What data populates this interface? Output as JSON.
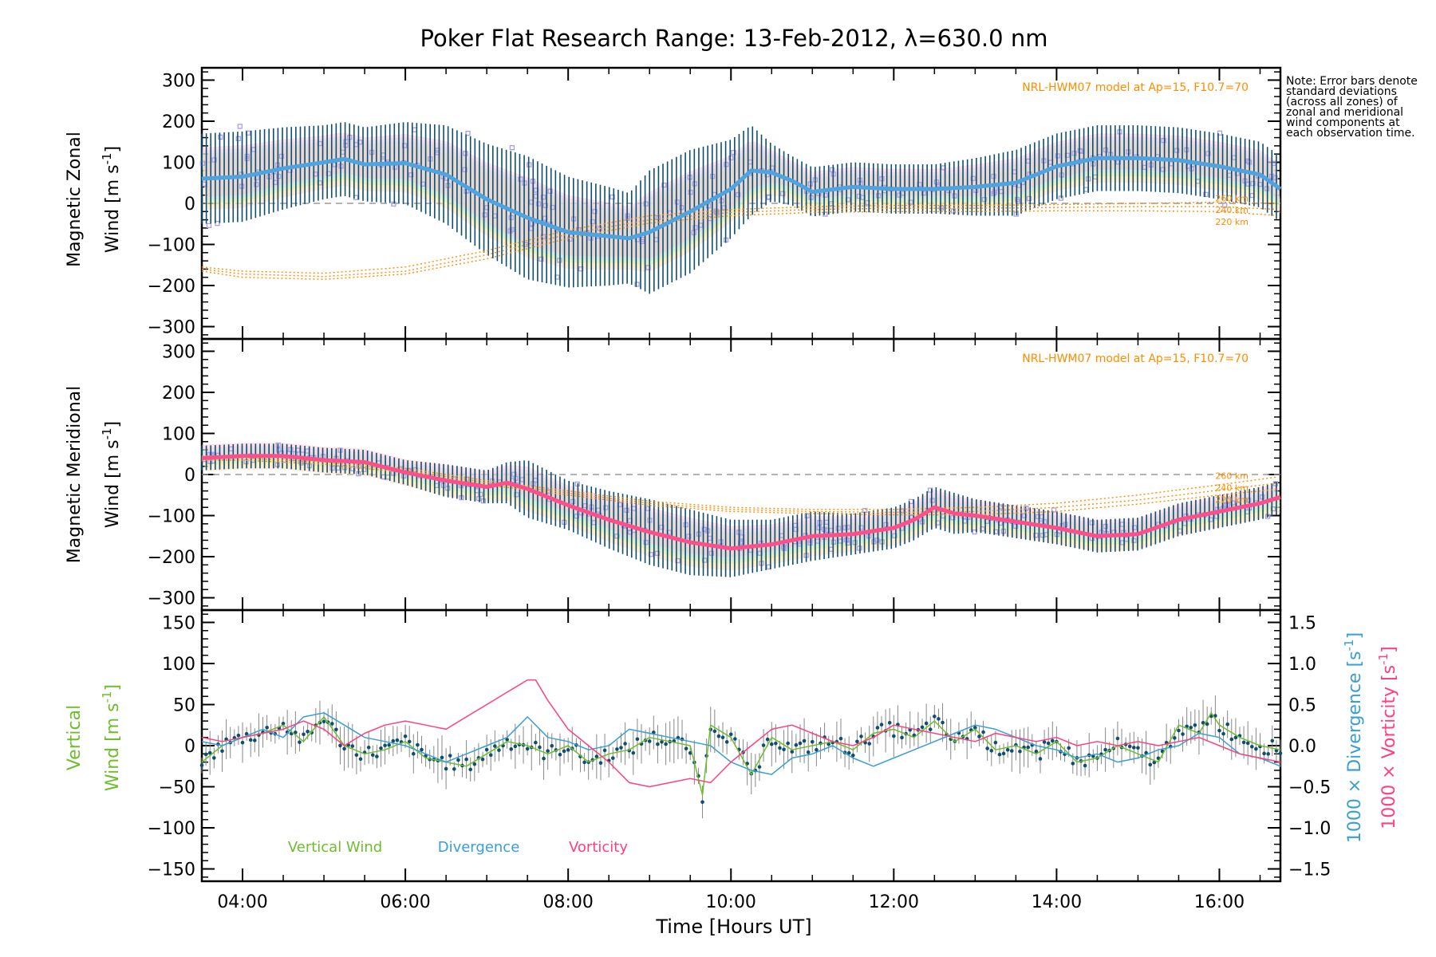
{
  "title": "Poker Flat Research Range: 13-Feb-2012, λ=630.0 nm",
  "note": "Note: Error bars denote standard deviations (across all zones) of zonal and meridional wind components at each observation time.",
  "colors": {
    "zonal_mean": "#4fa3df",
    "meridional_mean": "#ff4f8b",
    "model": "#ff8c00",
    "vertical": "#6ebd2e",
    "divergence": "#3a9ed6",
    "vorticity": "#ff3f7f",
    "errorbar": "#0e4f6f",
    "scatter": "#a8a0e6",
    "zero_line": "#9a9a9a"
  },
  "chart_data": [
    {
      "type": "line",
      "panel": "zonal",
      "ylabel_line1": "Magnetic Zonal",
      "ylabel_line2": "Wind [m s",
      "ylabel_sup": "-1",
      "ylabel_close": "]",
      "ylim": [
        -330,
        330
      ],
      "yticks": [
        300,
        200,
        100,
        0,
        -100,
        -200,
        -300
      ],
      "model_label": "NRL-HWM07 model at Ap=15, F10.7=70",
      "model_altitudes": [
        "260 km",
        "240 km",
        "220 km"
      ],
      "mean_wind": {
        "x": [
          3.5,
          4.0,
          4.5,
          5.0,
          5.25,
          5.5,
          6.0,
          6.5,
          7.0,
          7.5,
          8.0,
          8.5,
          8.75,
          9.0,
          9.5,
          10.0,
          10.25,
          10.5,
          10.75,
          11.0,
          11.5,
          12.0,
          12.5,
          13.0,
          13.5,
          14.0,
          14.5,
          15.0,
          15.5,
          16.0,
          16.5,
          16.75
        ],
        "y": [
          60,
          65,
          85,
          100,
          108,
          95,
          98,
          70,
          10,
          -35,
          -70,
          -80,
          -85,
          -70,
          -20,
          35,
          80,
          75,
          55,
          28,
          40,
          35,
          35,
          40,
          50,
          90,
          110,
          110,
          105,
          90,
          70,
          35
        ]
      },
      "spread": [
        110,
        110,
        100,
        90,
        90,
        90,
        100,
        120,
        135,
        150,
        135,
        120,
        110,
        150,
        150,
        120,
        110,
        70,
        60,
        60,
        60,
        60,
        60,
        70,
        80,
        80,
        80,
        80,
        80,
        80,
        80,
        80
      ],
      "model": [
        {
          "name": "260 km",
          "x": [
            3.5,
            4.0,
            5.0,
            6.0,
            7.0,
            8.0,
            9.0,
            10.0,
            11.0,
            12.0,
            13.0,
            14.0,
            15.0,
            16.0,
            16.75
          ],
          "y": [
            -155,
            -165,
            -170,
            -155,
            -115,
            -65,
            -30,
            -15,
            -8,
            -5,
            -5,
            -3,
            0,
            3,
            0
          ]
        },
        {
          "name": "240 km",
          "x": [
            3.5,
            4.0,
            5.0,
            6.0,
            7.0,
            8.0,
            9.0,
            10.0,
            11.0,
            12.0,
            13.0,
            14.0,
            15.0,
            16.0,
            16.75
          ],
          "y": [
            -160,
            -172,
            -178,
            -165,
            -125,
            -75,
            -40,
            -22,
            -15,
            -12,
            -12,
            -10,
            -8,
            -8,
            -15
          ]
        },
        {
          "name": "220 km",
          "x": [
            3.5,
            4.0,
            5.0,
            6.0,
            7.0,
            8.0,
            9.0,
            10.0,
            11.0,
            12.0,
            13.0,
            14.0,
            15.0,
            16.0,
            16.75
          ],
          "y": [
            -165,
            -180,
            -185,
            -172,
            -135,
            -85,
            -48,
            -30,
            -22,
            -20,
            -20,
            -18,
            -18,
            -20,
            -30
          ]
        }
      ]
    },
    {
      "type": "line",
      "panel": "meridional",
      "ylabel_line1": "Magnetic Meridional",
      "ylabel_line2": "Wind [m s",
      "ylabel_sup": "-1",
      "ylabel_close": "]",
      "ylim": [
        -330,
        330
      ],
      "yticks": [
        300,
        200,
        100,
        0,
        -100,
        -200,
        -300
      ],
      "model_label": "NRL-HWM07 model at Ap=15, F10.7=70",
      "model_altitudes": [
        "260 km",
        "240 km",
        "220 km"
      ],
      "mean_wind": {
        "x": [
          3.5,
          4.0,
          4.5,
          5.0,
          5.5,
          6.0,
          6.5,
          7.0,
          7.25,
          7.5,
          8.0,
          8.5,
          9.0,
          9.5,
          10.0,
          10.5,
          11.0,
          11.5,
          12.0,
          12.25,
          12.5,
          12.75,
          13.0,
          13.5,
          14.0,
          14.5,
          15.0,
          15.5,
          16.0,
          16.5,
          16.75
        ],
        "y": [
          40,
          45,
          45,
          35,
          30,
          5,
          -15,
          -30,
          -20,
          -35,
          -75,
          -110,
          -140,
          -165,
          -180,
          -170,
          -150,
          -145,
          -130,
          -110,
          -80,
          -95,
          -100,
          -115,
          -130,
          -150,
          -145,
          -110,
          -90,
          -70,
          -55
        ]
      },
      "spread": [
        30,
        30,
        30,
        30,
        30,
        30,
        40,
        40,
        50,
        70,
        60,
        70,
        80,
        80,
        70,
        60,
        60,
        50,
        50,
        50,
        50,
        50,
        40,
        40,
        40,
        40,
        40,
        40,
        40,
        40,
        40
      ],
      "model": [
        {
          "name": "260 km",
          "x": [
            3.5,
            4.0,
            5.0,
            6.0,
            7.0,
            8.0,
            9.0,
            10.0,
            11.0,
            12.0,
            13.0,
            14.0,
            15.0,
            16.0,
            16.75
          ],
          "y": [
            45,
            45,
            35,
            15,
            -15,
            -40,
            -65,
            -80,
            -85,
            -85,
            -80,
            -70,
            -50,
            -25,
            -5
          ]
        },
        {
          "name": "240 km",
          "x": [
            3.5,
            4.0,
            5.0,
            6.0,
            7.0,
            8.0,
            9.0,
            10.0,
            11.0,
            12.0,
            13.0,
            14.0,
            15.0,
            16.0,
            16.75
          ],
          "y": [
            40,
            40,
            30,
            10,
            -20,
            -45,
            -70,
            -85,
            -90,
            -92,
            -90,
            -80,
            -62,
            -38,
            -20
          ]
        },
        {
          "name": "220 km",
          "x": [
            3.5,
            4.0,
            5.0,
            6.0,
            7.0,
            8.0,
            9.0,
            10.0,
            11.0,
            12.0,
            13.0,
            14.0,
            15.0,
            16.0,
            16.75
          ],
          "y": [
            35,
            35,
            25,
            5,
            -25,
            -50,
            -75,
            -90,
            -95,
            -98,
            -98,
            -90,
            -72,
            -50,
            -35
          ]
        }
      ]
    },
    {
      "type": "line",
      "panel": "vertical",
      "ylabel_line1": "Vertical",
      "ylabel_line2": "Wind [m s",
      "ylabel_sup": "-1",
      "ylabel_close": "]",
      "ylim": [
        -165,
        165
      ],
      "yticks": [
        150,
        100,
        50,
        0,
        -50,
        -100,
        -150
      ],
      "y2lim": [
        -1.65,
        1.65
      ],
      "y2ticks": [
        "1.5",
        "1.0",
        "0.5",
        "0.0",
        "-0.5",
        "-1.0",
        "-1.5"
      ],
      "y2label_div_pre": "1000 × Divergence [s",
      "y2label_vor_pre": "1000 × Vorticity [s",
      "y2label_sup": "-1",
      "y2label_close": "]",
      "legend": [
        "Vertical Wind",
        "Divergence",
        "Vorticity"
      ],
      "series": [
        {
          "name": "Vertical Wind",
          "axis": "left",
          "x": [
            3.5,
            3.75,
            4.0,
            4.25,
            4.5,
            4.75,
            5.0,
            5.25,
            5.5,
            5.75,
            6.0,
            6.25,
            6.5,
            6.75,
            7.0,
            7.25,
            7.5,
            7.75,
            8.0,
            8.25,
            8.5,
            8.75,
            9.0,
            9.25,
            9.5,
            9.65,
            9.75,
            10.0,
            10.25,
            10.5,
            10.75,
            11.0,
            11.25,
            11.5,
            11.75,
            12.0,
            12.25,
            12.5,
            12.75,
            13.0,
            13.25,
            13.5,
            13.75,
            14.0,
            14.25,
            14.5,
            14.75,
            15.0,
            15.25,
            15.5,
            15.75,
            15.9,
            16.0,
            16.25,
            16.5,
            16.75
          ],
          "y": [
            -20,
            0,
            10,
            15,
            25,
            5,
            35,
            0,
            -10,
            -5,
            5,
            -15,
            -20,
            -25,
            -10,
            5,
            0,
            -10,
            0,
            -20,
            -10,
            -5,
            10,
            5,
            0,
            -60,
            25,
            10,
            -35,
            10,
            -5,
            0,
            5,
            -5,
            15,
            20,
            10,
            30,
            5,
            20,
            -5,
            0,
            -10,
            5,
            -20,
            -15,
            0,
            -10,
            -20,
            25,
            15,
            40,
            25,
            10,
            0,
            -5
          ]
        },
        {
          "name": "Divergence",
          "axis": "right",
          "x": [
            3.5,
            3.75,
            4.0,
            4.25,
            4.5,
            4.75,
            5.0,
            5.25,
            5.5,
            5.75,
            6.0,
            6.25,
            6.5,
            6.75,
            7.0,
            7.25,
            7.5,
            7.75,
            8.0,
            8.25,
            8.5,
            8.75,
            9.0,
            9.25,
            9.5,
            9.75,
            10.0,
            10.25,
            10.5,
            10.75,
            11.0,
            11.25,
            11.5,
            11.75,
            12.0,
            12.25,
            12.5,
            12.75,
            13.0,
            13.25,
            13.5,
            13.75,
            14.0,
            14.25,
            14.5,
            14.75,
            15.0,
            15.25,
            15.5,
            15.75,
            16.0,
            16.25,
            16.5,
            16.75
          ],
          "y": [
            0.05,
            0.0,
            0.1,
            0.2,
            0.1,
            0.35,
            0.4,
            0.25,
            0.1,
            0.05,
            0.0,
            -0.1,
            -0.2,
            -0.1,
            0.0,
            0.1,
            0.35,
            0.1,
            0.05,
            -0.05,
            0.0,
            0.2,
            0.15,
            0.1,
            0.05,
            0.0,
            -0.2,
            -0.3,
            -0.35,
            -0.15,
            -0.1,
            0.0,
            -0.15,
            -0.25,
            -0.15,
            -0.05,
            0.05,
            0.15,
            0.25,
            0.2,
            0.1,
            0.0,
            -0.05,
            -0.15,
            -0.1,
            -0.2,
            -0.15,
            -0.05,
            0.0,
            0.15,
            0.1,
            -0.1,
            -0.15,
            -0.25
          ]
        },
        {
          "name": "Vorticity",
          "axis": "right",
          "x": [
            3.5,
            3.75,
            4.0,
            4.25,
            4.5,
            4.75,
            5.0,
            5.25,
            5.5,
            5.75,
            6.0,
            6.25,
            6.5,
            6.75,
            7.0,
            7.25,
            7.5,
            7.6,
            7.75,
            8.0,
            8.25,
            8.5,
            8.75,
            9.0,
            9.25,
            9.5,
            9.75,
            10.0,
            10.25,
            10.5,
            10.75,
            11.0,
            11.25,
            11.5,
            11.75,
            12.0,
            12.25,
            12.5,
            12.75,
            13.0,
            13.25,
            13.5,
            13.75,
            14.0,
            14.25,
            14.5,
            14.75,
            15.0,
            15.25,
            15.5,
            15.75,
            16.0,
            16.25,
            16.5,
            16.75
          ],
          "y": [
            0.1,
            0.05,
            0.1,
            0.15,
            0.2,
            0.3,
            0.2,
            0.0,
            0.15,
            0.25,
            0.3,
            0.25,
            0.2,
            0.35,
            0.5,
            0.65,
            0.8,
            0.8,
            0.55,
            0.2,
            0.0,
            -0.2,
            -0.45,
            -0.5,
            -0.45,
            -0.4,
            -0.45,
            -0.2,
            0.0,
            0.2,
            0.25,
            0.15,
            0.05,
            0.0,
            0.1,
            0.25,
            0.2,
            0.15,
            0.1,
            0.05,
            0.15,
            0.1,
            0.05,
            0.1,
            0.0,
            0.05,
            0.0,
            0.05,
            0.0,
            0.05,
            0.1,
            0.0,
            -0.1,
            -0.15,
            -0.2
          ]
        }
      ]
    }
  ],
  "xaxis": {
    "xlim": [
      3.5,
      16.75
    ],
    "ticks": [
      4,
      6,
      8,
      10,
      12,
      14,
      16
    ],
    "ticklabels": [
      "04:00",
      "06:00",
      "08:00",
      "10:00",
      "12:00",
      "14:00",
      "16:00"
    ],
    "label": "Time [Hours UT]"
  }
}
